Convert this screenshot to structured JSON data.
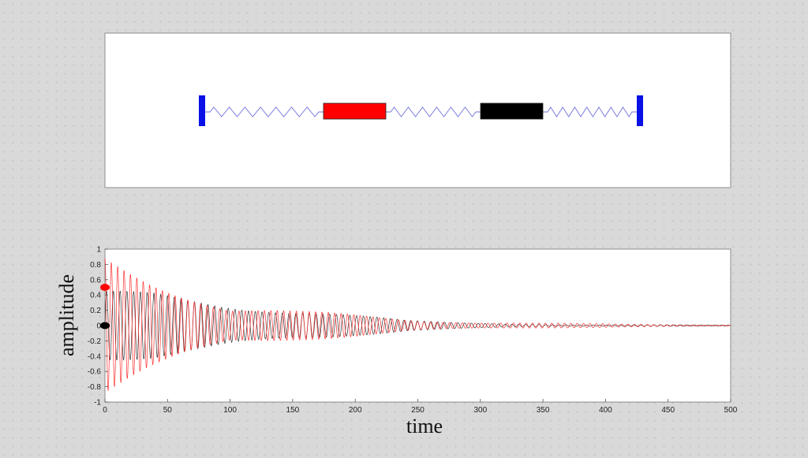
{
  "colors": {
    "wall": "#0a10e6",
    "spring": "#6f73d9",
    "mass1": "#ff0000",
    "mass2": "#000000",
    "trace_black": "#333333",
    "trace_red": "#ff3030"
  },
  "chart_data": {
    "type": "line",
    "xlabel": "time",
    "ylabel": "amplitude",
    "xlim": [
      0,
      500
    ],
    "ylim": [
      -1,
      1
    ],
    "xticks": [
      0,
      50,
      100,
      150,
      200,
      250,
      300,
      350,
      400,
      450,
      500
    ],
    "yticks": [
      -1,
      -0.8,
      -0.6,
      -0.4,
      -0.2,
      0,
      0.2,
      0.4,
      0.6,
      0.8,
      1
    ],
    "grid": false,
    "series": [
      {
        "color": "#333333",
        "marker_value": 0,
        "envelope_points": [
          [
            0,
            0.45
          ],
          [
            40,
            0.48
          ],
          [
            80,
            0.44
          ],
          [
            120,
            0.37
          ],
          [
            160,
            0.27
          ],
          [
            200,
            0.16
          ],
          [
            240,
            0.07
          ],
          [
            280,
            0.04
          ],
          [
            330,
            0.025
          ],
          [
            420,
            0.012
          ],
          [
            500,
            0.008
          ]
        ]
      },
      {
        "color": "#ff3030",
        "marker_value": 0.5,
        "envelope_points": [
          [
            0,
            0.97
          ],
          [
            50,
            0.68
          ],
          [
            100,
            0.28
          ],
          [
            150,
            0.2
          ],
          [
            200,
            0.15
          ],
          [
            250,
            0.08
          ],
          [
            300,
            0.05
          ],
          [
            350,
            0.035
          ],
          [
            420,
            0.02
          ],
          [
            500,
            0.01
          ]
        ]
      }
    ]
  }
}
